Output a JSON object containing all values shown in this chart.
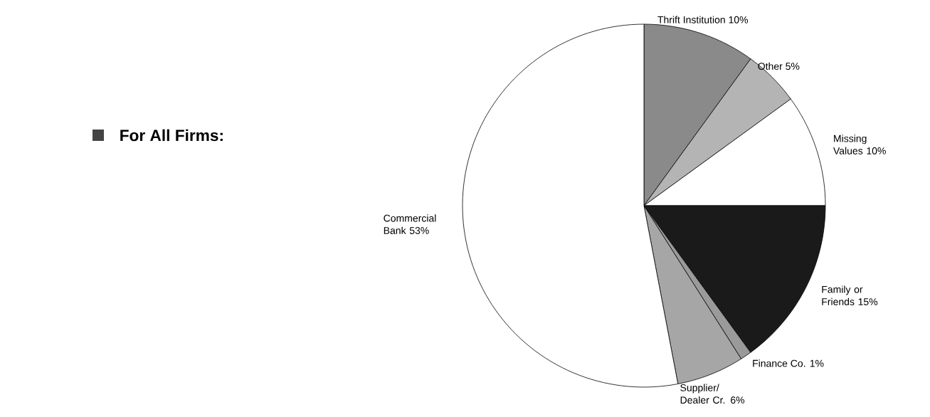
{
  "chart_data": {
    "type": "pie",
    "title": "For All Firms:",
    "categories": [
      "Thrift Institution",
      "Other",
      "Missing Values",
      "Family or Friends",
      "Finance Co.",
      "Supplier/ Dealer Cr.",
      "Commercial Bank"
    ],
    "values": [
      10,
      5,
      10,
      15,
      1,
      6,
      53
    ],
    "value_labels": [
      "10%",
      "5%",
      "10%",
      "15%",
      "1%",
      "6%",
      "53%"
    ],
    "colors": [
      "#8a8a8a",
      "#b4b4b4",
      "#ffffff",
      "#1a1a1a",
      "#9a9a9a",
      "#a6a6a6",
      "#ffffff"
    ]
  }
}
